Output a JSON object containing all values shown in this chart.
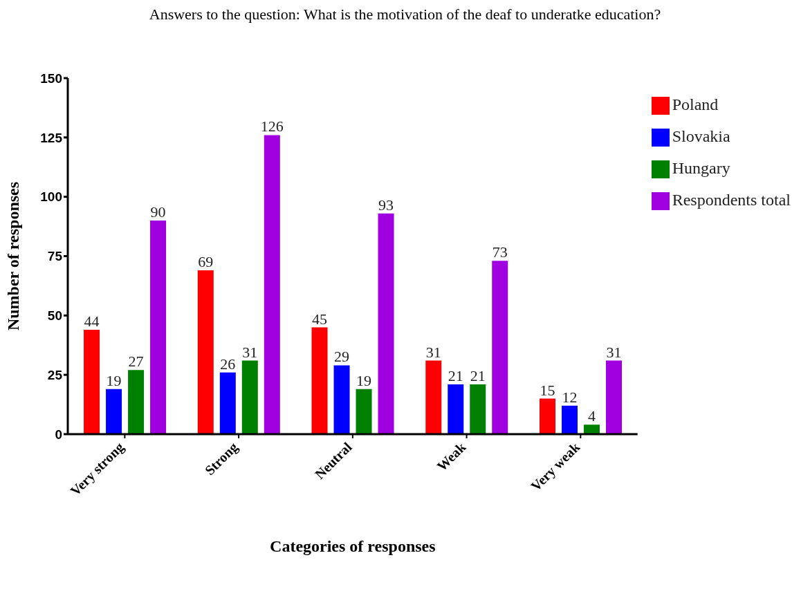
{
  "chart_data": {
    "type": "bar",
    "title": "Answers to the question: What is the motivation of the deaf to underatke education?",
    "xlabel": "Categories of responses",
    "ylabel": "Number of responses",
    "categories": [
      "Very strong",
      "Strong",
      "Neutral",
      "Weak",
      "Very weak"
    ],
    "series": [
      {
        "name": "Poland",
        "color": "#ff0000",
        "values": [
          44,
          69,
          45,
          31,
          15
        ]
      },
      {
        "name": "Slovakia",
        "color": "#0000ff",
        "values": [
          19,
          26,
          29,
          21,
          12
        ]
      },
      {
        "name": "Hungary",
        "color": "#008000",
        "values": [
          27,
          31,
          19,
          21,
          4
        ]
      },
      {
        "name": "Respondents total",
        "color": "#a000e0",
        "values": [
          90,
          126,
          93,
          73,
          31
        ]
      }
    ],
    "ylim": [
      0,
      150
    ],
    "yticks": [
      0,
      25,
      50,
      75,
      100,
      125,
      150
    ],
    "grid": false,
    "legend": "top right",
    "data_labels": true
  }
}
